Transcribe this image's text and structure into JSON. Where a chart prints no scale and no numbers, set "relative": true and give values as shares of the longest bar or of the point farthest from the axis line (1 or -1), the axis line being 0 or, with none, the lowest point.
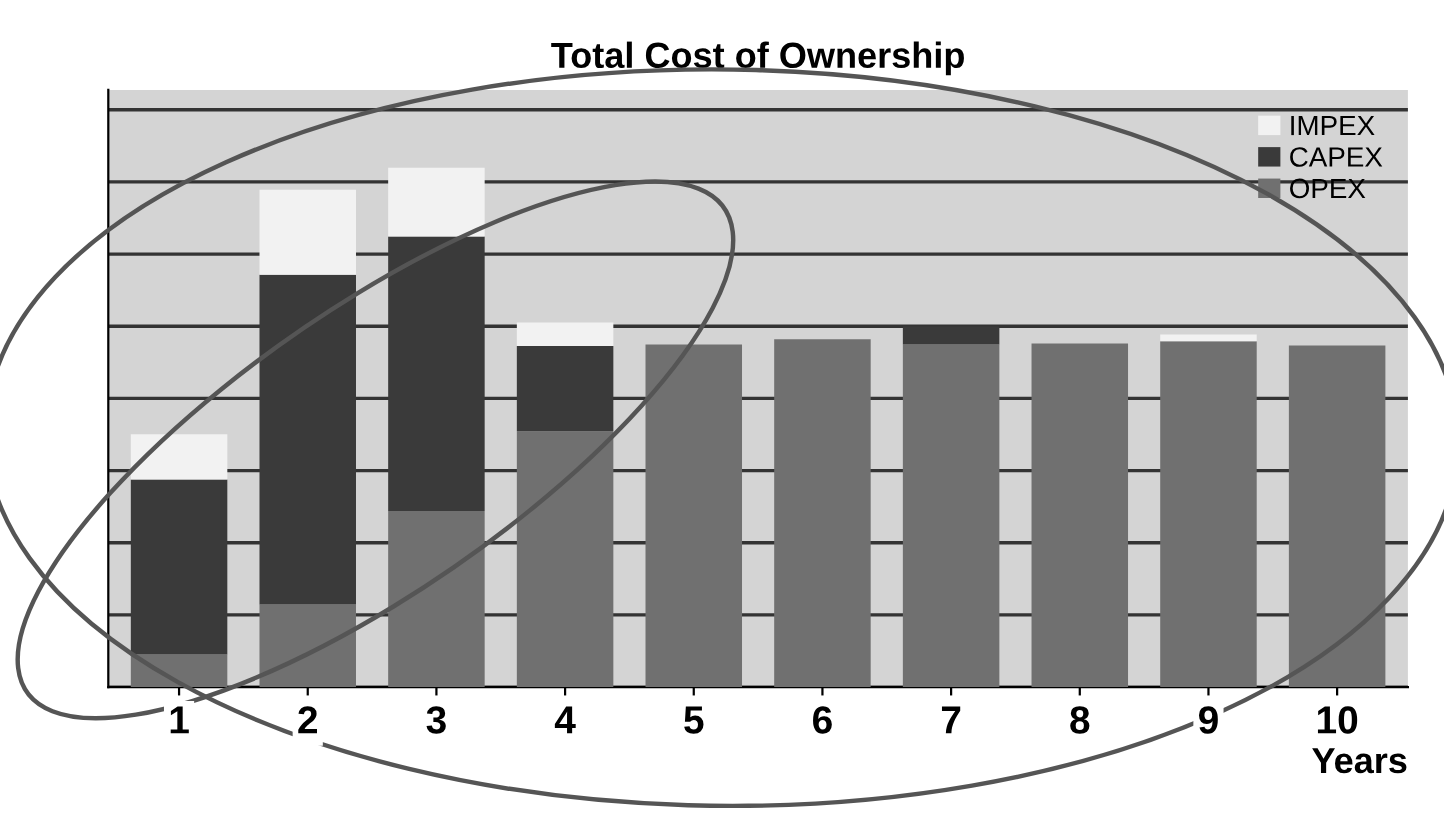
{
  "chart_data": {
    "type": "bar",
    "title": "Total Cost of Ownership",
    "xlabel": "Years",
    "relative": true,
    "stacked": true,
    "grid": "y",
    "legend": "top right",
    "categories": [
      "1",
      "2",
      "3",
      "4",
      "5",
      "6",
      "7",
      "8",
      "9",
      "10"
    ],
    "series": [
      {
        "name": "OPEX",
        "color": "#707070",
        "values": [
          0.063,
          0.159,
          0.339,
          0.493,
          0.66,
          0.67,
          0.66,
          0.662,
          0.666,
          0.658
        ]
      },
      {
        "name": "CAPEX",
        "color": "#3a3a3a",
        "values": [
          0.337,
          0.635,
          0.529,
          0.164,
          0,
          0,
          0.035,
          0,
          0,
          0
        ]
      },
      {
        "name": "IMPEX",
        "color": "#f2f2f2",
        "values": [
          0.087,
          0.164,
          0.132,
          0.045,
          0,
          0,
          0,
          0,
          0.013,
          0
        ]
      }
    ]
  }
}
